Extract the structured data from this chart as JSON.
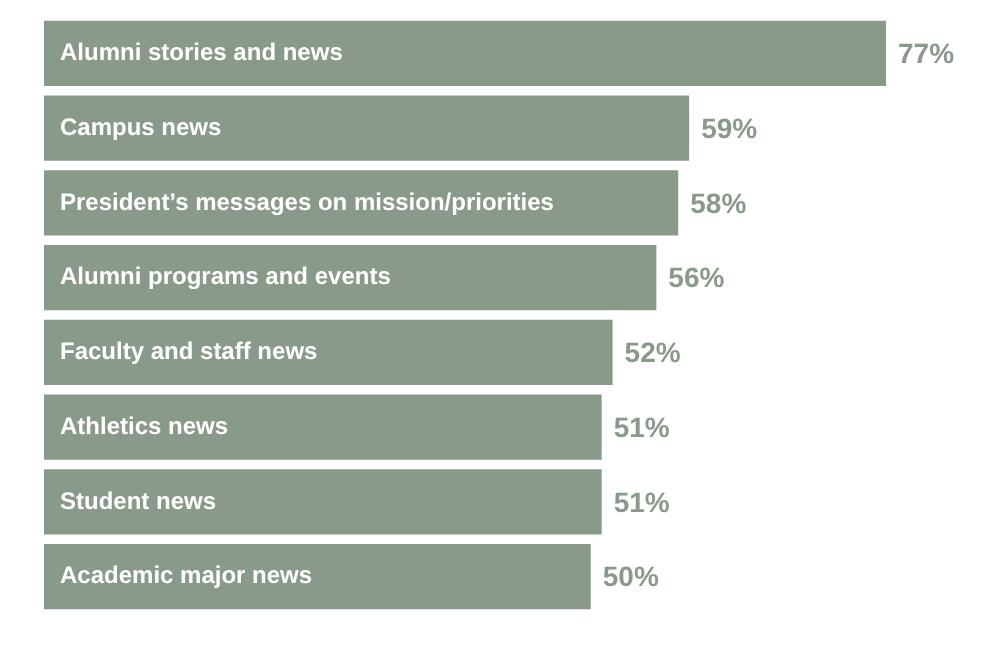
{
  "chart_data": {
    "type": "bar",
    "orientation": "horizontal",
    "categories": [
      "Alumni stories and news",
      "Campus news",
      "President’s messages on mission/priorities",
      "Alumni programs and events",
      "Faculty and staff news",
      "Athletics news",
      "Student news",
      "Academic major news"
    ],
    "values": [
      77,
      59,
      58,
      56,
      52,
      51,
      51,
      50
    ],
    "value_labels": [
      "77%",
      "59%",
      "58%",
      "56%",
      "52%",
      "51%",
      "51%",
      "50%"
    ],
    "color": "#8a9a8a",
    "tick_labels": false
  }
}
